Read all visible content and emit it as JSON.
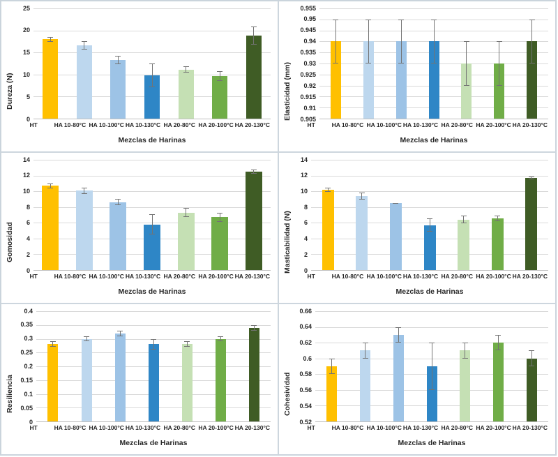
{
  "figure": {
    "description": "Six bar charts of texture properties of flour blends with error bars",
    "shared_x_title": "Mezclas de Harinas",
    "colors": {
      "grid": "#d9d9d9",
      "axis_line": "#bfbfbf",
      "error_bar": "#737373",
      "text": "#262626",
      "panel_border": "#cdd6de"
    }
  },
  "chart_data": [
    {
      "type": "bar",
      "title": "",
      "ylabel": "Dureza (N)",
      "xlabel": "Mezclas de Harinas",
      "categories": [
        "HT",
        "HA 10-80°C",
        "HA 10-100°C",
        "HA 10-130°C",
        "HA 20-80°C",
        "HA 20-100°C",
        "HA 20-130°C"
      ],
      "values": [
        18.0,
        16.6,
        13.3,
        9.8,
        11.1,
        9.7,
        18.8
      ],
      "errors": [
        0.55,
        1.0,
        0.9,
        2.65,
        0.7,
        1.1,
        2.1
      ],
      "bar_colors": [
        "#FFC000",
        "#BDD7EE",
        "#9DC3E6",
        "#2E86C6",
        "#C5E0B4",
        "#70AD47",
        "#3F5C25"
      ],
      "ylim": [
        0,
        25
      ],
      "yticks": [
        0,
        5,
        10,
        15,
        20,
        25
      ],
      "ytick_labels": [
        "0",
        "5",
        "10",
        "15",
        "20",
        "25"
      ],
      "grid": true,
      "legend": false
    },
    {
      "type": "bar",
      "title": "",
      "ylabel": "Elasticidad (mm)",
      "xlabel": "Mezclas de Harinas",
      "categories": [
        "HT",
        "HA 10-80°C",
        "HA 10-100°C",
        "HA 10-130°C",
        "HA 20-80°C",
        "HA 20-100°C",
        "HA 20-130°C"
      ],
      "values": [
        0.94,
        0.94,
        0.94,
        0.94,
        0.93,
        0.93,
        0.94
      ],
      "errors": [
        0.01,
        0.01,
        0.01,
        0.01,
        0.01,
        0.01,
        0.01
      ],
      "bar_colors": [
        "#FFC000",
        "#BDD7EE",
        "#9DC3E6",
        "#2E86C6",
        "#C5E0B4",
        "#70AD47",
        "#3F5C25"
      ],
      "ylim": [
        0.905,
        0.955
      ],
      "yticks": [
        0.905,
        0.91,
        0.915,
        0.92,
        0.925,
        0.93,
        0.935,
        0.94,
        0.945,
        0.95,
        0.955
      ],
      "ytick_labels": [
        "0.905",
        "0.91",
        "0.915",
        "0.92",
        "0.925",
        "0.93",
        "0.935",
        "0.94",
        "0.945",
        "0.95",
        "0.955"
      ],
      "grid": true,
      "legend": false
    },
    {
      "type": "bar",
      "title": "",
      "ylabel": "Gomosidad",
      "xlabel": "Mezclas de Harinas",
      "categories": [
        "HT",
        "HA 10-80°C",
        "HA 10-100°C",
        "HA 10-130°C",
        "HA 20-80°C",
        "HA 20-100°C",
        "HA 20-130°C"
      ],
      "values": [
        10.7,
        10.1,
        8.6,
        5.8,
        7.3,
        6.7,
        12.5
      ],
      "errors": [
        0.3,
        0.4,
        0.4,
        1.25,
        0.6,
        0.6,
        0.3
      ],
      "bar_colors": [
        "#FFC000",
        "#BDD7EE",
        "#9DC3E6",
        "#2E86C6",
        "#C5E0B4",
        "#70AD47",
        "#3F5C25"
      ],
      "ylim": [
        0,
        14
      ],
      "yticks": [
        0,
        2,
        4,
        6,
        8,
        10,
        12,
        14
      ],
      "ytick_labels": [
        "0",
        "2",
        "4",
        "6",
        "8",
        "10",
        "12",
        "14"
      ],
      "grid": true,
      "legend": false
    },
    {
      "type": "bar",
      "title": "",
      "ylabel": "Masticabilidad (N)",
      "xlabel": "Mezclas de Harinas",
      "categories": [
        "HT",
        "HA 10-80°C",
        "HA 10-100°C",
        "HA 10-130°C",
        "HA 20-80°C",
        "HA 20-100°C",
        "HA 20-130°C"
      ],
      "values": [
        10.2,
        9.4,
        8.5,
        5.7,
        6.4,
        6.55,
        11.7
      ],
      "errors": [
        0.3,
        0.45,
        0.05,
        0.85,
        0.5,
        0.35,
        0.2
      ],
      "bar_colors": [
        "#FFC000",
        "#BDD7EE",
        "#9DC3E6",
        "#2E86C6",
        "#C5E0B4",
        "#70AD47",
        "#3F5C25"
      ],
      "ylim": [
        0,
        14
      ],
      "yticks": [
        0,
        2,
        4,
        6,
        8,
        10,
        12,
        14
      ],
      "ytick_labels": [
        "0",
        "2",
        "4",
        "6",
        "8",
        "10",
        "12",
        "14"
      ],
      "grid": true,
      "legend": false
    },
    {
      "type": "bar",
      "title": "",
      "ylabel": "Resiliencia",
      "xlabel": "Mezclas de Harinas",
      "categories": [
        "HT",
        "HA 10-80°C",
        "HA 10-100°C",
        "HA 10-130°C",
        "HA 20-80°C",
        "HA 20-100°C",
        "HA 20-130°C"
      ],
      "values": [
        0.28,
        0.3,
        0.32,
        0.28,
        0.28,
        0.3,
        0.34
      ],
      "errors": [
        0.01,
        0.01,
        0.01,
        0.02,
        0.01,
        0.01,
        0.01
      ],
      "bar_colors": [
        "#FFC000",
        "#BDD7EE",
        "#9DC3E6",
        "#2E86C6",
        "#C5E0B4",
        "#70AD47",
        "#3F5C25"
      ],
      "ylim": [
        0,
        0.4
      ],
      "yticks": [
        0,
        0.05,
        0.1,
        0.15,
        0.2,
        0.25,
        0.3,
        0.35,
        0.4
      ],
      "ytick_labels": [
        "0",
        "0.05",
        "0.1",
        "0.15",
        "0.2",
        "0.25",
        "0.3",
        "0.35",
        "0.4"
      ],
      "grid": true,
      "legend": false
    },
    {
      "type": "bar",
      "title": "",
      "ylabel": "Cohesividad",
      "xlabel": "Mezclas de Harinas",
      "categories": [
        "HT",
        "HA 10-80°C",
        "HA 10-100°C",
        "HA 10-130°C",
        "HA 20-80°C",
        "HA 20-100°C",
        "HA 20-130°C"
      ],
      "values": [
        0.59,
        0.61,
        0.63,
        0.59,
        0.61,
        0.62,
        0.6
      ],
      "errors": [
        0.01,
        0.01,
        0.01,
        0.03,
        0.01,
        0.01,
        0.01
      ],
      "bar_colors": [
        "#FFC000",
        "#BDD7EE",
        "#9DC3E6",
        "#2E86C6",
        "#C5E0B4",
        "#70AD47",
        "#3F5C25"
      ],
      "ylim": [
        0.52,
        0.66
      ],
      "yticks": [
        0.52,
        0.54,
        0.56,
        0.58,
        0.6,
        0.62,
        0.64,
        0.66
      ],
      "ytick_labels": [
        "0.52",
        "0.54",
        "0.56",
        "0.58",
        "0.6",
        "0.62",
        "0.64",
        "0.66"
      ],
      "grid": true,
      "legend": false
    }
  ]
}
